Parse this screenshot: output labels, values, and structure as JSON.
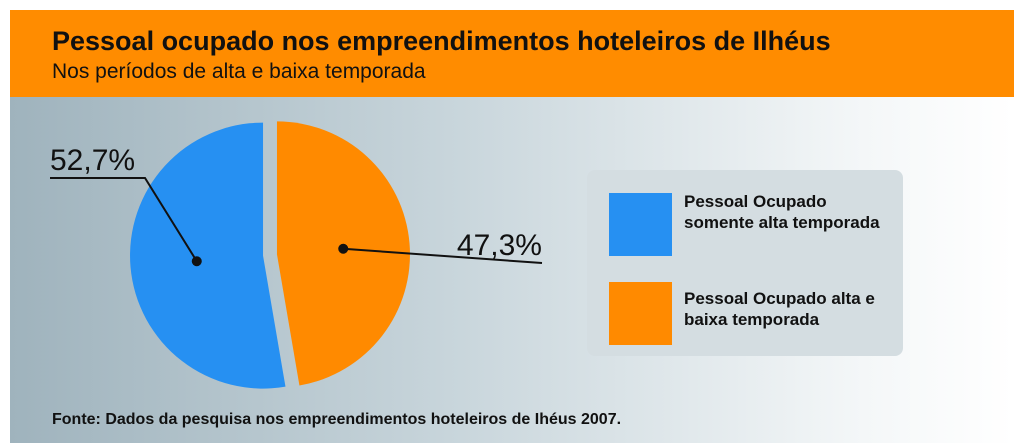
{
  "chart_data": {
    "type": "pie",
    "title": "Pessoal ocupado nos empreendimentos hoteleiros de Ilhéus",
    "subtitle": "Nos períodos de alta e baixa temporada",
    "categories": [
      "Pessoal Ocupado somente alta temporada",
      "Pessoal Ocupado alta e baixa temporada"
    ],
    "values": [
      52.7,
      47.3
    ],
    "value_labels": [
      "52,7%",
      "47,3%"
    ],
    "colors": [
      "#2690f2",
      "#ff8a00"
    ],
    "source": "Fonte: Dados da pesquisa nos empreendimentos hoteleiros de Ihéus 2007."
  }
}
